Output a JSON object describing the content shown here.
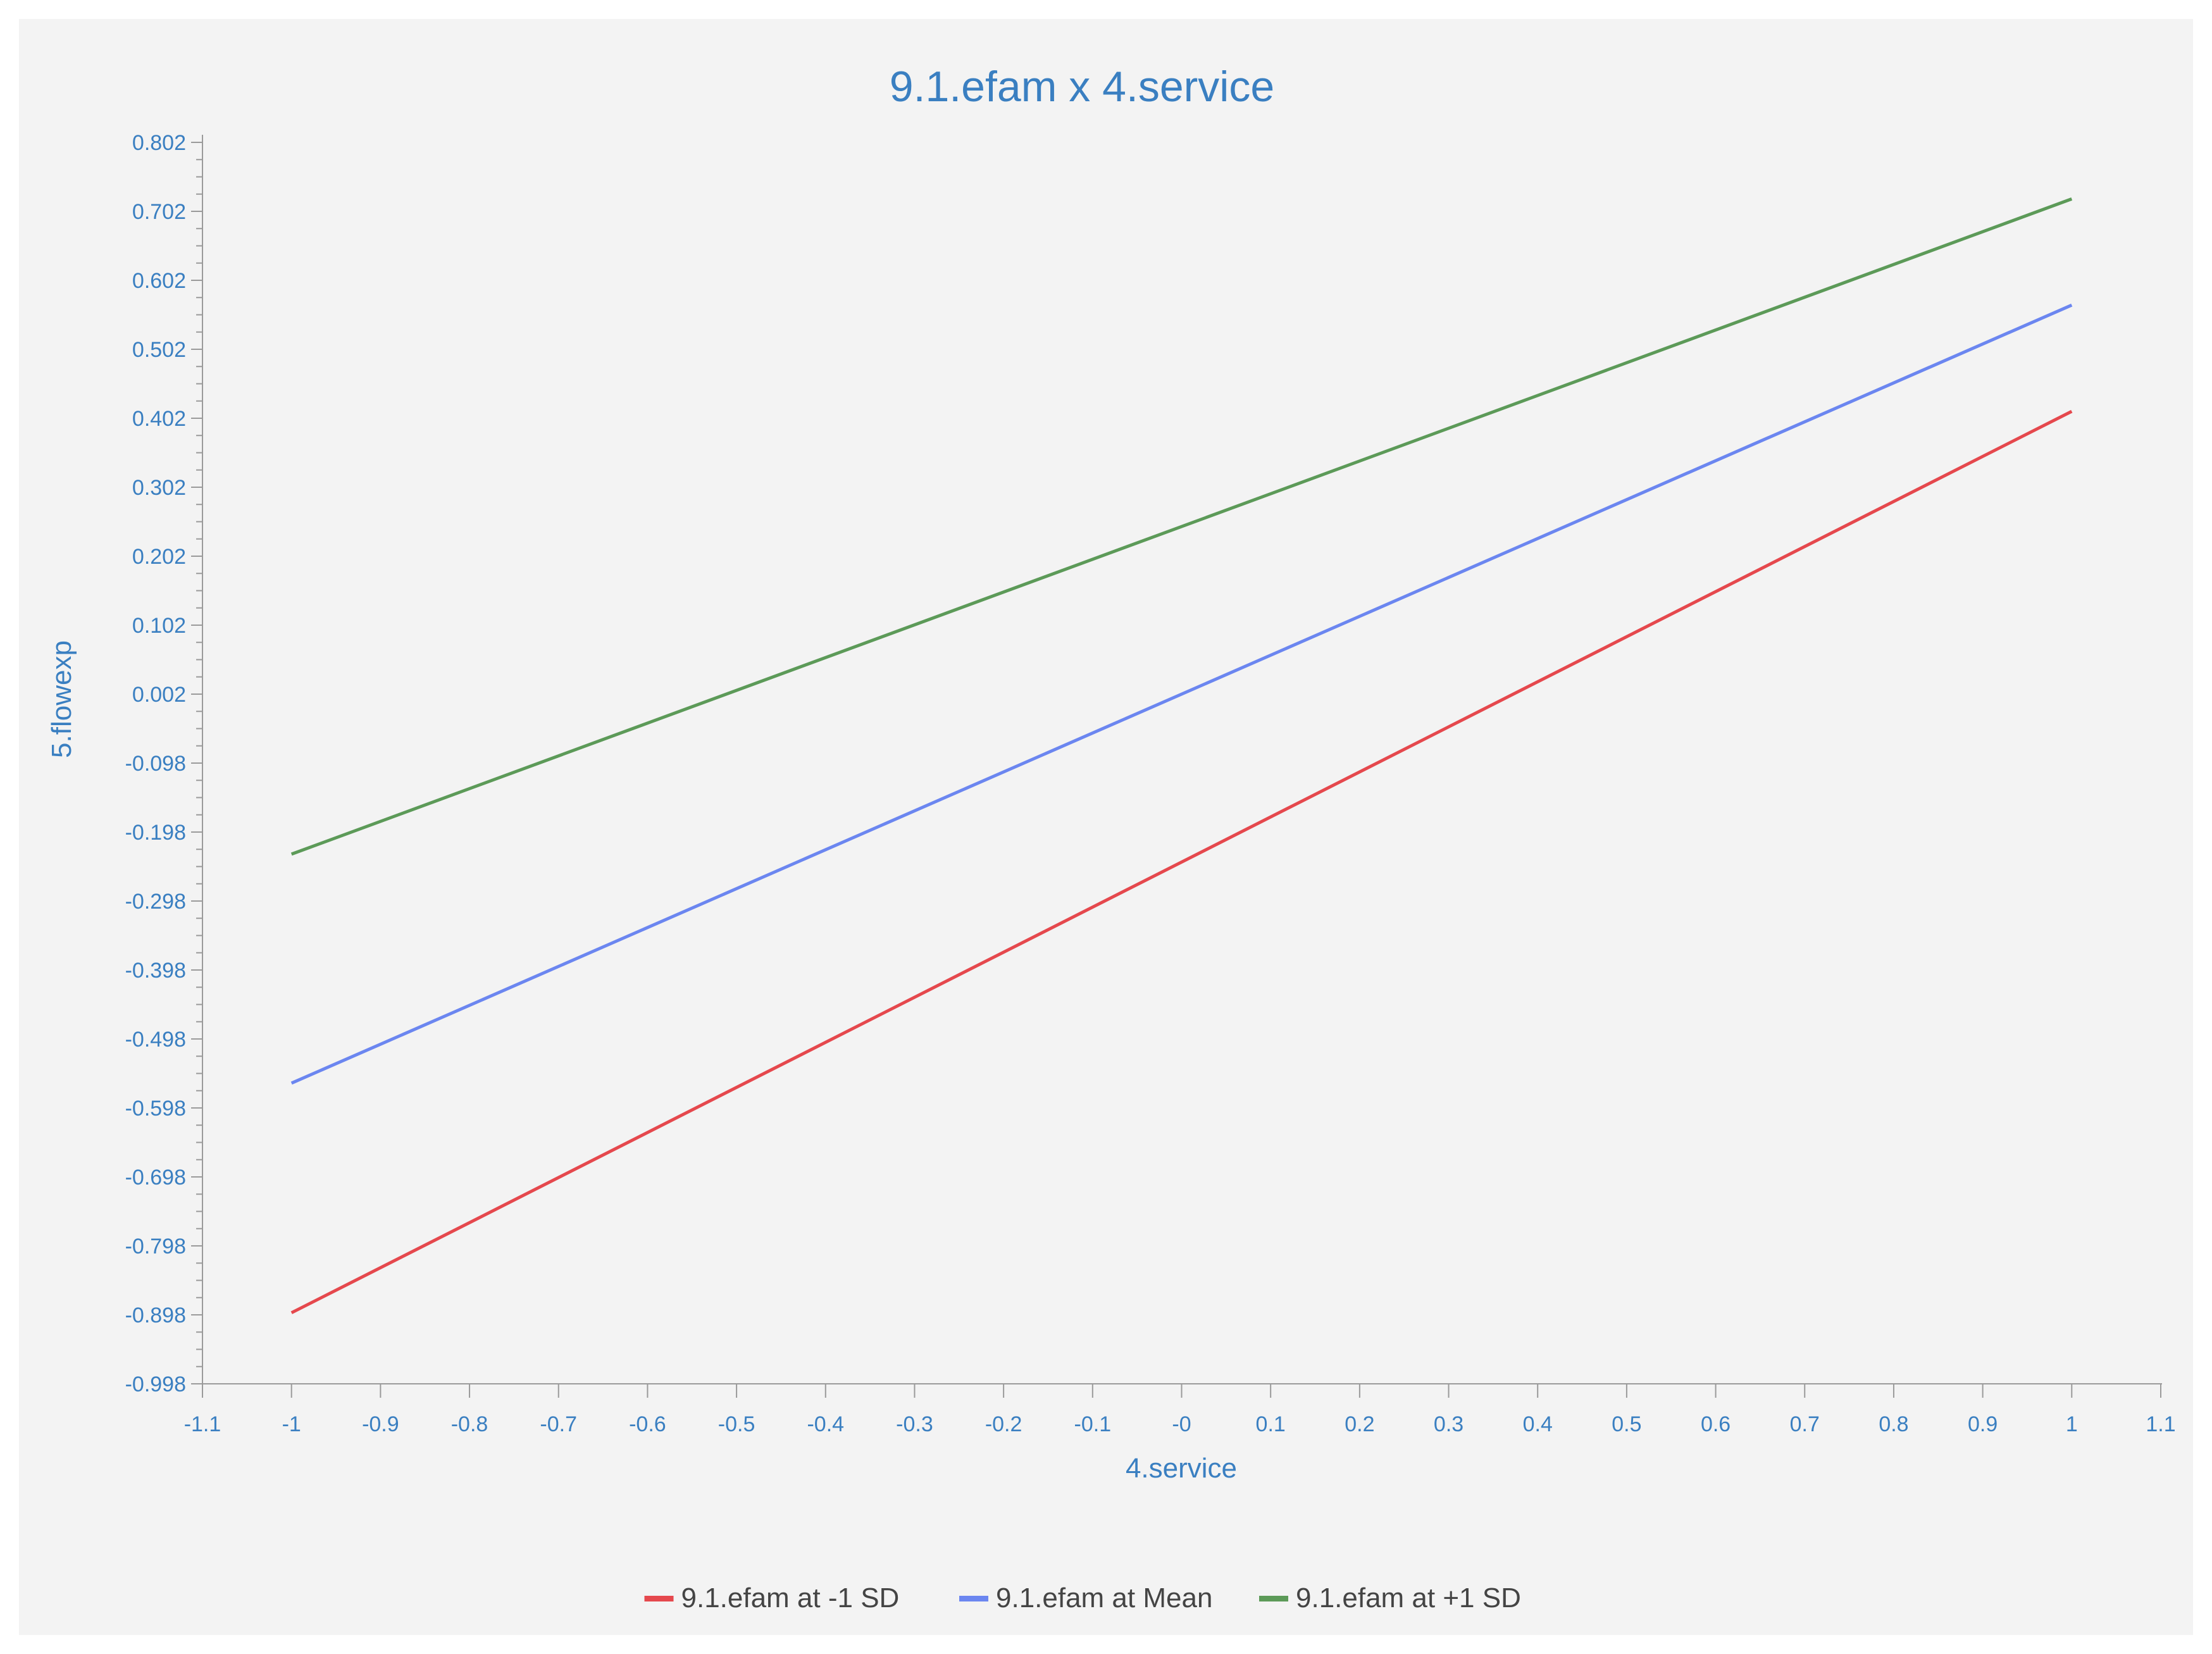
{
  "chart_data": {
    "type": "line",
    "title": "9.1.efam x 4.service",
    "xlabel": "4.service",
    "ylabel": "5.flowexp",
    "xlim": [
      -1.1,
      1.1
    ],
    "ylim": [
      -0.998,
      0.802
    ],
    "x_ticks": [
      "-1.1",
      "-1",
      "-0.9",
      "-0.8",
      "-0.7",
      "-0.6",
      "-0.5",
      "-0.4",
      "-0.3",
      "-0.2",
      "-0.1",
      "-0",
      "0.1",
      "0.2",
      "0.3",
      "0.4",
      "0.5",
      "0.6",
      "0.7",
      "0.8",
      "0.9",
      "1",
      "1.1"
    ],
    "y_ticks": [
      "0.802",
      "0.702",
      "0.602",
      "0.502",
      "0.402",
      "0.302",
      "0.202",
      "0.102",
      "0.002",
      "-0.098",
      "-0.198",
      "-0.298",
      "-0.398",
      "-0.498",
      "-0.598",
      "-0.698",
      "-0.798",
      "-0.898",
      "-0.998"
    ],
    "grid": false,
    "legend_position": "bottom",
    "series": [
      {
        "name": "9.1.efam at -1 SD",
        "color": "#e5484d",
        "x": [
          -1,
          1
        ],
        "y": [
          -0.895,
          0.412
        ]
      },
      {
        "name": "9.1.efam at Mean",
        "color": "#6b86f0",
        "x": [
          -1,
          1
        ],
        "y": [
          -0.562,
          0.566
        ]
      },
      {
        "name": "9.1.efam at +1 SD",
        "color": "#5c9a58",
        "x": [
          -1,
          1
        ],
        "y": [
          -0.23,
          0.72
        ]
      }
    ]
  }
}
